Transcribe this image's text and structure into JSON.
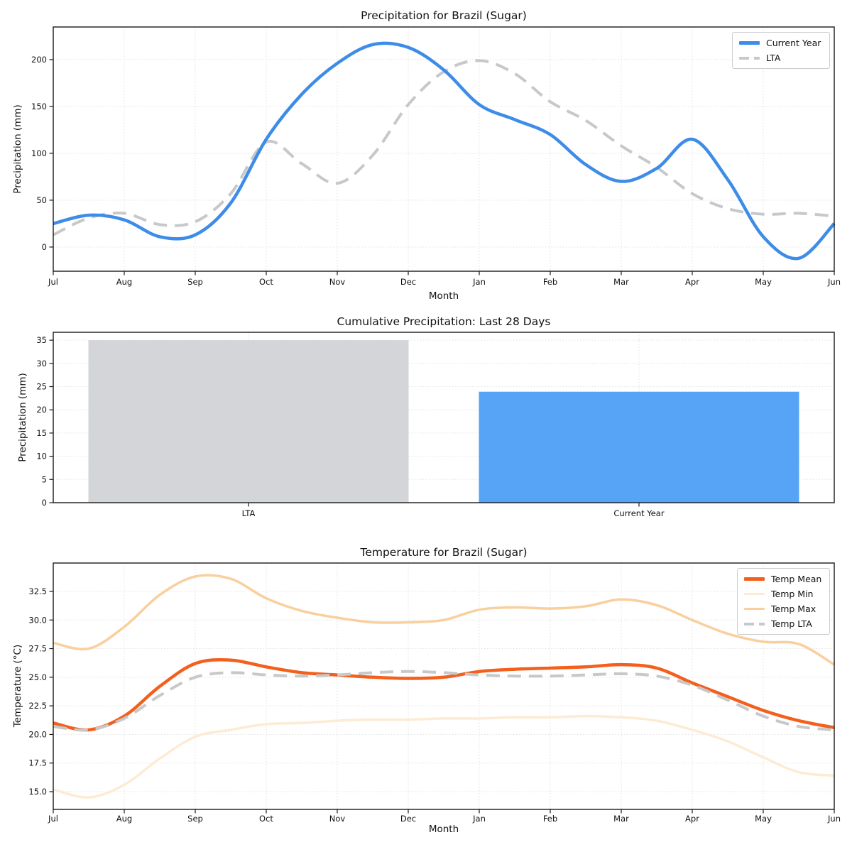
{
  "figure": {
    "background": "#ffffff"
  },
  "chart_data": [
    {
      "type": "line",
      "title": "Precipitation for Brazil (Sugar)",
      "xlabel": "Month",
      "ylabel": "Precipitation (mm)",
      "x_tick_labels": [
        "Jul",
        "Aug",
        "Sep",
        "Oct",
        "Nov",
        "Dec",
        "Jan",
        "Feb",
        "Mar",
        "Apr",
        "May",
        "Jun"
      ],
      "x": [
        0,
        0.5,
        1,
        1.5,
        2,
        2.5,
        3,
        3.5,
        4,
        4.5,
        5,
        5.5,
        6,
        6.5,
        7,
        7.5,
        8,
        8.5,
        9,
        9.5,
        10,
        10.5,
        11
      ],
      "series": [
        {
          "name": "Current Year",
          "color": "#3d8ce8",
          "style": "solid",
          "width": 4.5,
          "values": [
            25,
            34,
            29,
            11,
            13,
            47,
            115,
            163,
            196,
            216,
            213,
            189,
            152,
            136,
            120,
            88,
            70,
            84,
            115,
            72,
            11,
            -12,
            25
          ]
        },
        {
          "name": "LTA",
          "color": "#c6c8ca",
          "style": "dashed",
          "width": 4,
          "values": [
            13,
            31,
            36,
            24,
            27,
            57,
            112,
            89,
            68,
            98,
            152,
            187,
            199,
            185,
            155,
            135,
            108,
            85,
            57,
            41,
            35,
            36,
            33
          ]
        }
      ],
      "y_ticks": [
        0,
        50,
        100,
        150,
        200
      ],
      "y_tick_labels": [
        "0",
        "50",
        "100",
        "150",
        "200"
      ],
      "ylim": [
        -25.8,
        234.8
      ],
      "grid": true,
      "legend_position": "upper right"
    },
    {
      "type": "bar",
      "title": "Cumulative Precipitation: Last 28 Days",
      "ylabel": "Precipitation (mm)",
      "categories": [
        "LTA",
        "Current Year"
      ],
      "values": [
        35.0,
        23.9
      ],
      "colors": [
        "#d3d5d8",
        "#57a3f6"
      ],
      "y_ticks": [
        0,
        5,
        10,
        15,
        20,
        25,
        30,
        35
      ],
      "y_tick_labels": [
        "0",
        "5",
        "10",
        "15",
        "20",
        "25",
        "30",
        "35"
      ],
      "ylim": [
        0,
        36.7
      ],
      "grid": true
    },
    {
      "type": "line",
      "title": "Temperature for Brazil (Sugar)",
      "xlabel": "Month",
      "ylabel": "Temperature (°C)",
      "x_tick_labels": [
        "Jul",
        "Aug",
        "Sep",
        "Oct",
        "Nov",
        "Dec",
        "Jan",
        "Feb",
        "Mar",
        "Apr",
        "May",
        "Jun"
      ],
      "x": [
        0,
        0.5,
        1,
        1.5,
        2,
        2.5,
        3,
        3.5,
        4,
        4.5,
        5,
        5.5,
        6,
        6.5,
        7,
        7.5,
        8,
        8.5,
        9,
        9.5,
        10,
        10.5,
        11
      ],
      "series": [
        {
          "name": "Temp Mean",
          "color": "#f3601d",
          "style": "solid",
          "width": 4.5,
          "values": [
            21.0,
            20.4,
            21.6,
            24.2,
            26.2,
            26.5,
            25.9,
            25.4,
            25.2,
            25.0,
            24.9,
            25.0,
            25.5,
            25.7,
            25.8,
            25.9,
            26.1,
            25.8,
            24.5,
            23.3,
            22.1,
            21.2,
            20.6
          ]
        },
        {
          "name": "Temp Min",
          "color": "#fdebd4",
          "style": "solid",
          "width": 3.5,
          "values": [
            15.2,
            14.5,
            15.6,
            17.9,
            19.8,
            20.4,
            20.9,
            21.0,
            21.2,
            21.3,
            21.3,
            21.4,
            21.4,
            21.5,
            21.5,
            21.6,
            21.5,
            21.2,
            20.4,
            19.4,
            18.0,
            16.7,
            16.4
          ]
        },
        {
          "name": "Temp Max",
          "color": "#f9cf9e",
          "style": "solid",
          "width": 3.5,
          "values": [
            28.0,
            27.5,
            29.4,
            32.2,
            33.8,
            33.6,
            31.9,
            30.8,
            30.2,
            29.8,
            29.8,
            30.0,
            30.9,
            31.1,
            31.0,
            31.2,
            31.8,
            31.3,
            30.0,
            28.8,
            28.1,
            27.9,
            26.1
          ]
        },
        {
          "name": "Temp LTA",
          "color": "#c6c8ca",
          "style": "dashed",
          "width": 4,
          "values": [
            20.7,
            20.4,
            21.4,
            23.4,
            25.0,
            25.4,
            25.2,
            25.1,
            25.2,
            25.4,
            25.5,
            25.4,
            25.2,
            25.1,
            25.1,
            25.2,
            25.3,
            25.1,
            24.3,
            23.0,
            21.6,
            20.7,
            20.4
          ]
        }
      ],
      "y_ticks": [
        15,
        17.5,
        20,
        22.5,
        25,
        27.5,
        30,
        32.5
      ],
      "y_tick_labels": [
        "15.0",
        "17.5",
        "20.0",
        "22.5",
        "25.0",
        "27.5",
        "30.0",
        "32.5"
      ],
      "ylim": [
        13.45,
        34.98
      ],
      "grid": true,
      "legend_position": "upper right"
    }
  ]
}
